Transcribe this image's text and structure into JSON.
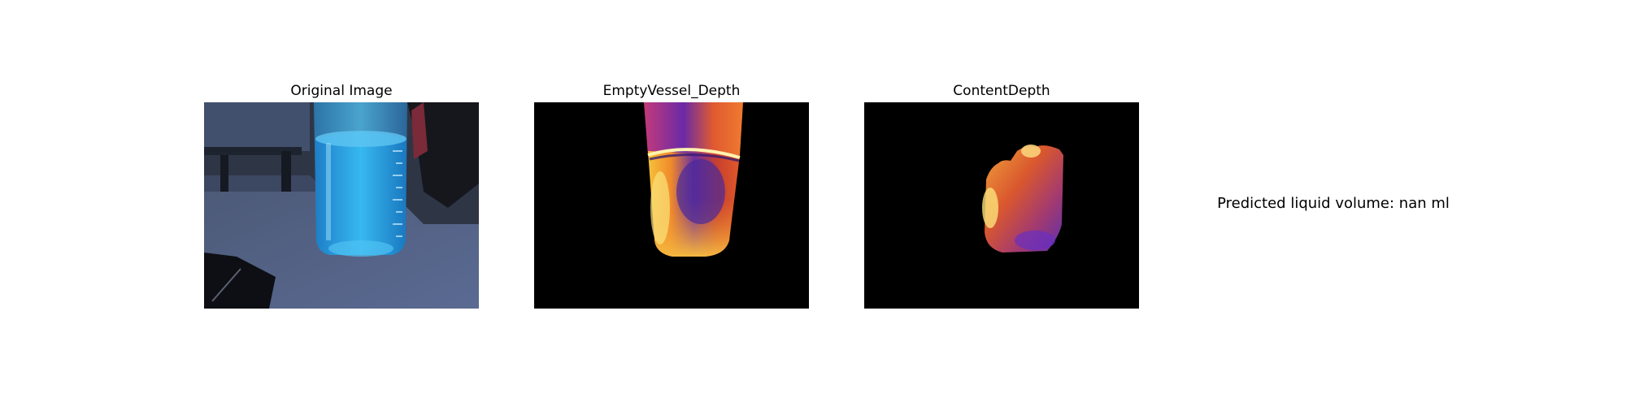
{
  "panels": [
    {
      "title": "Original Image"
    },
    {
      "title": "EmptyVessel_Depth"
    },
    {
      "title": "ContentDepth"
    }
  ],
  "prediction_text": "Predicted liquid volume: nan ml",
  "colors": {
    "background": "#ffffff",
    "depth_background": "#000000"
  }
}
